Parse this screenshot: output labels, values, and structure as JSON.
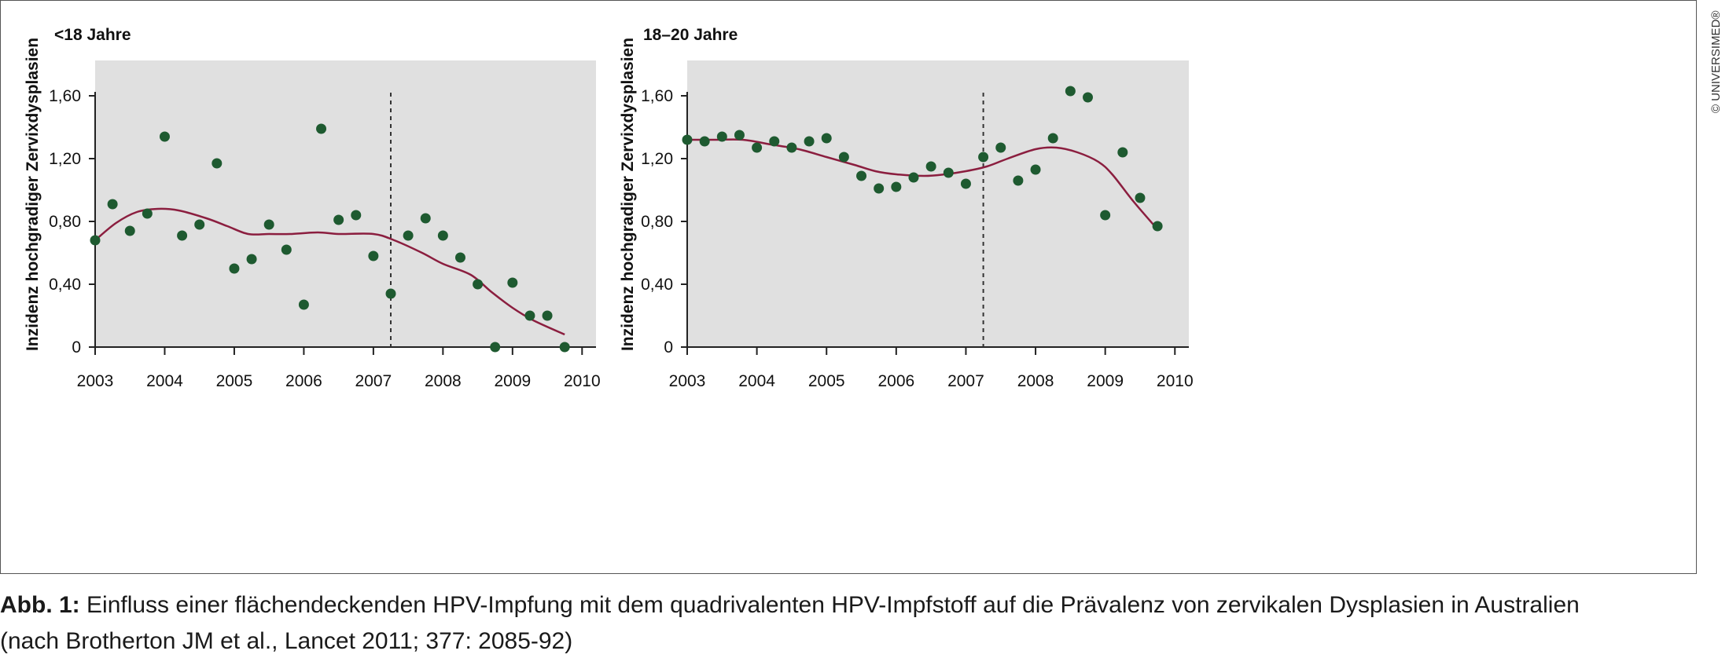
{
  "copyright": "© UNIVERSIMED®",
  "caption": {
    "prefix": "Abb. 1:",
    "line1": "Einfluss einer flächendeckenden HPV-Impfung mit dem quadrivalenten HPV-Impfstoff auf die Prävalenz von zervikalen Dysplasien in Australien",
    "line2": "(nach Brotherton JM et al., Lancet 2011; 377: 2085-92)"
  },
  "chart_data": [
    {
      "type": "scatter",
      "title": "<18 Jahre",
      "ylabel": "Inzidenz hochgradiger Zervixdysplasien",
      "xlabel": "",
      "xlim": [
        2003,
        2010.2
      ],
      "ylim": [
        0,
        1.8
      ],
      "xticks": [
        2003,
        2004,
        2005,
        2006,
        2007,
        2008,
        2009,
        2010
      ],
      "xtick_labels": [
        "2003",
        "2004",
        "2005",
        "2006",
        "2007",
        "2008",
        "2009",
        "2010"
      ],
      "yticks": [
        0,
        0.4,
        0.8,
        1.2,
        1.6
      ],
      "ytick_labels": [
        "0",
        "0,40",
        "0,80",
        "1,20",
        "1,60"
      ],
      "grid": false,
      "background": "#e0e0e0",
      "point_color": "#1e5a30",
      "line_color": "#8b1e3f",
      "vline_x": 2007.25,
      "points": [
        [
          2003.0,
          0.68
        ],
        [
          2003.25,
          0.91
        ],
        [
          2003.5,
          0.74
        ],
        [
          2003.75,
          0.85
        ],
        [
          2004.0,
          1.34
        ],
        [
          2004.25,
          0.71
        ],
        [
          2004.5,
          0.78
        ],
        [
          2004.75,
          1.17
        ],
        [
          2005.0,
          0.5
        ],
        [
          2005.25,
          0.56
        ],
        [
          2005.5,
          0.78
        ],
        [
          2005.75,
          0.62
        ],
        [
          2006.0,
          0.27
        ],
        [
          2006.25,
          1.39
        ],
        [
          2006.5,
          0.81
        ],
        [
          2006.75,
          0.84
        ],
        [
          2007.0,
          0.58
        ],
        [
          2007.25,
          0.34
        ],
        [
          2007.5,
          0.71
        ],
        [
          2007.75,
          0.82
        ],
        [
          2008.0,
          0.71
        ],
        [
          2008.25,
          0.57
        ],
        [
          2008.5,
          0.4
        ],
        [
          2008.75,
          0.0
        ],
        [
          2009.0,
          0.41
        ],
        [
          2009.25,
          0.2
        ],
        [
          2009.5,
          0.2
        ],
        [
          2009.75,
          0.0
        ]
      ],
      "trend": [
        [
          2003.0,
          0.68
        ],
        [
          2003.3,
          0.79
        ],
        [
          2003.6,
          0.86
        ],
        [
          2003.9,
          0.88
        ],
        [
          2004.2,
          0.87
        ],
        [
          2004.6,
          0.82
        ],
        [
          2004.9,
          0.77
        ],
        [
          2005.2,
          0.72
        ],
        [
          2005.5,
          0.72
        ],
        [
          2005.8,
          0.72
        ],
        [
          2006.2,
          0.73
        ],
        [
          2006.5,
          0.72
        ],
        [
          2007.0,
          0.72
        ],
        [
          2007.3,
          0.68
        ],
        [
          2007.7,
          0.6
        ],
        [
          2008.0,
          0.53
        ],
        [
          2008.4,
          0.46
        ],
        [
          2008.7,
          0.35
        ],
        [
          2009.0,
          0.25
        ],
        [
          2009.3,
          0.17
        ],
        [
          2009.75,
          0.08
        ]
      ]
    },
    {
      "type": "scatter",
      "title": "18–20 Jahre",
      "ylabel": "Inzidenz hochgradiger Zervixdysplasien",
      "xlabel": "",
      "xlim": [
        2003,
        2010.2
      ],
      "ylim": [
        0,
        1.8
      ],
      "xticks": [
        2003,
        2004,
        2005,
        2006,
        2007,
        2008,
        2009,
        2010
      ],
      "xtick_labels": [
        "2003",
        "2004",
        "2005",
        "2006",
        "2007",
        "2008",
        "2009",
        "2010"
      ],
      "yticks": [
        0,
        0.4,
        0.8,
        1.2,
        1.6
      ],
      "ytick_labels": [
        "0",
        "0,40",
        "0,80",
        "1,20",
        "1,60"
      ],
      "grid": false,
      "background": "#e0e0e0",
      "point_color": "#1e5a30",
      "line_color": "#8b1e3f",
      "vline_x": 2007.25,
      "points": [
        [
          2003.0,
          1.32
        ],
        [
          2003.25,
          1.31
        ],
        [
          2003.5,
          1.34
        ],
        [
          2003.75,
          1.35
        ],
        [
          2004.0,
          1.27
        ],
        [
          2004.25,
          1.31
        ],
        [
          2004.5,
          1.27
        ],
        [
          2004.75,
          1.31
        ],
        [
          2005.0,
          1.33
        ],
        [
          2005.25,
          1.21
        ],
        [
          2005.5,
          1.09
        ],
        [
          2005.75,
          1.01
        ],
        [
          2006.0,
          1.02
        ],
        [
          2006.25,
          1.08
        ],
        [
          2006.5,
          1.15
        ],
        [
          2006.75,
          1.11
        ],
        [
          2007.0,
          1.04
        ],
        [
          2007.25,
          1.21
        ],
        [
          2007.5,
          1.27
        ],
        [
          2007.75,
          1.06
        ],
        [
          2008.0,
          1.13
        ],
        [
          2008.25,
          1.33
        ],
        [
          2008.5,
          1.63
        ],
        [
          2008.75,
          1.59
        ],
        [
          2009.0,
          0.84
        ],
        [
          2009.25,
          1.24
        ],
        [
          2009.5,
          0.95
        ],
        [
          2009.75,
          0.77
        ]
      ],
      "trend": [
        [
          2003.0,
          1.32
        ],
        [
          2003.4,
          1.32
        ],
        [
          2003.8,
          1.32
        ],
        [
          2004.2,
          1.29
        ],
        [
          2004.6,
          1.26
        ],
        [
          2005.0,
          1.21
        ],
        [
          2005.4,
          1.16
        ],
        [
          2005.7,
          1.12
        ],
        [
          2006.0,
          1.1
        ],
        [
          2006.4,
          1.09
        ],
        [
          2006.7,
          1.1
        ],
        [
          2007.0,
          1.12
        ],
        [
          2007.3,
          1.15
        ],
        [
          2007.6,
          1.2
        ],
        [
          2008.0,
          1.26
        ],
        [
          2008.3,
          1.27
        ],
        [
          2008.6,
          1.24
        ],
        [
          2008.9,
          1.18
        ],
        [
          2009.1,
          1.1
        ],
        [
          2009.4,
          0.93
        ],
        [
          2009.75,
          0.75
        ]
      ]
    }
  ]
}
